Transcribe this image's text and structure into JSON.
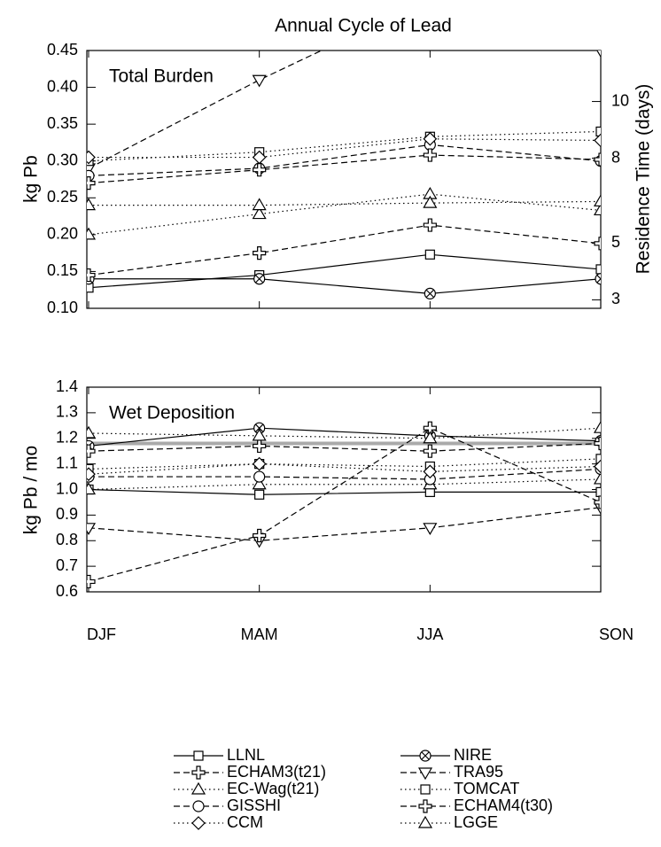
{
  "chart_data": [
    {
      "type": "line",
      "title": "Annual Cycle of Lead",
      "annotation": "Total Burden",
      "ylabel": "kg Pb",
      "ylim": [
        0.1,
        0.45
      ],
      "yticks": [
        {
          "value": 0.1,
          "label": "0.10"
        },
        0.15,
        {
          "value": 0.2,
          "label": "0.20"
        },
        0.25,
        {
          "value": 0.3,
          "label": "0.30"
        },
        0.35,
        {
          "value": 0.4,
          "label": "0.40"
        },
        0.45
      ],
      "y2label": "Residence Time (days)",
      "y2lim": [
        2.7,
        11.8
      ],
      "y2ticks": [
        3,
        5,
        8,
        10
      ],
      "series": [
        {
          "color": "#000000",
          "dash": "solid",
          "marker": "square",
          "values": [
            0.128,
            0.145,
            0.173,
            0.153
          ]
        },
        {
          "color": "#000000",
          "dash": "solid",
          "marker": "xcircle",
          "values": [
            0.14,
            0.14,
            0.12,
            0.14
          ]
        },
        {
          "color": "#000000",
          "dash": "dashed",
          "marker": "plus",
          "values": [
            0.145,
            0.175,
            0.213,
            0.188
          ]
        },
        {
          "color": "#000000",
          "dash": "dashed",
          "marker": "tridown",
          "values": [
            0.29,
            0.41,
            0.52,
            0.45
          ]
        },
        {
          "color": "#000000",
          "dash": "dotted",
          "marker": "triup",
          "values": [
            0.2,
            0.228,
            0.255,
            0.233
          ]
        },
        {
          "color": "#000000",
          "dash": "dotted",
          "marker": "square",
          "values": [
            0.3,
            0.312,
            0.333,
            0.34
          ]
        },
        {
          "color": "#000000",
          "dash": "dashed",
          "marker": "circle",
          "values": [
            0.28,
            0.29,
            0.322,
            0.3
          ]
        },
        {
          "color": "#000000",
          "dash": "dashed",
          "marker": "plus",
          "values": [
            0.27,
            0.288,
            0.308,
            0.302
          ]
        },
        {
          "color": "#000000",
          "dash": "dotted",
          "marker": "diamond",
          "values": [
            0.305,
            0.305,
            0.33,
            0.328
          ]
        },
        {
          "color": "#000000",
          "dash": "dotted",
          "marker": "triup",
          "values": [
            0.24,
            0.24,
            0.243,
            0.245
          ]
        }
      ]
    },
    {
      "type": "line",
      "annotation": "Wet Deposition",
      "ylabel": "kg Pb / mo",
      "categories": [
        "DJF",
        "MAM",
        "JJA",
        "SON"
      ],
      "ylim": [
        0.6,
        1.4
      ],
      "yticks": [
        0.6,
        0.7,
        0.8,
        0.9,
        {
          "value": 1,
          "label": "1.0"
        },
        1.1,
        1.2,
        1.3,
        1.4
      ],
      "hline": 1.18,
      "hline_color": "#aaaaaa",
      "series": [
        {
          "name": "LLNL",
          "color": "#000000",
          "dash": "solid",
          "marker": "square",
          "values": [
            1.0,
            0.98,
            0.99,
            0.99
          ]
        },
        {
          "name": "NIRE",
          "color": "#000000",
          "dash": "solid",
          "marker": "xcircle",
          "values": [
            1.17,
            1.24,
            1.21,
            1.19
          ]
        },
        {
          "name": "ECHAM3(t21)",
          "color": "#000000",
          "dash": "dashed",
          "marker": "plus",
          "values": [
            1.15,
            1.17,
            1.15,
            1.18
          ]
        },
        {
          "name": "TRA95",
          "color": "#000000",
          "dash": "dashed",
          "marker": "tridown",
          "values": [
            0.85,
            0.8,
            0.85,
            0.93
          ]
        },
        {
          "name": "EC-Wag(t21)",
          "color": "#000000",
          "dash": "dotted",
          "marker": "triup",
          "values": [
            1.0,
            1.02,
            1.02,
            1.04
          ]
        },
        {
          "name": "TOMCAT",
          "color": "#000000",
          "dash": "dotted",
          "marker": "square",
          "values": [
            1.08,
            1.1,
            1.09,
            1.12
          ]
        },
        {
          "name": "GISSHI",
          "color": "#000000",
          "dash": "dashed",
          "marker": "circle",
          "values": [
            1.05,
            1.05,
            1.04,
            1.08
          ]
        },
        {
          "name": "ECHAM4(t30)",
          "color": "#000000",
          "dash": "dashed",
          "marker": "plus",
          "values": [
            0.64,
            0.82,
            1.24,
            0.95
          ]
        },
        {
          "name": "CCM",
          "color": "#000000",
          "dash": "dotted",
          "marker": "diamond",
          "values": [
            1.06,
            1.1,
            1.07,
            1.09
          ]
        },
        {
          "name": "LGGE",
          "color": "#000000",
          "dash": "dotted",
          "marker": "triup",
          "values": [
            1.22,
            1.21,
            1.2,
            1.24
          ]
        }
      ]
    }
  ]
}
